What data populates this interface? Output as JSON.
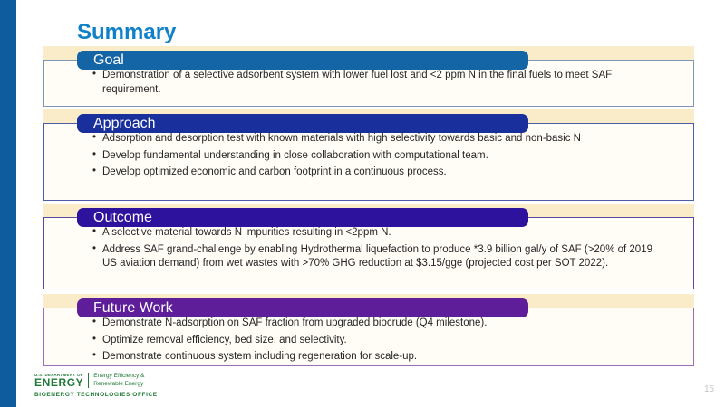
{
  "slide": {
    "title": "Summary",
    "title_color": "#1080c8",
    "accent_color": "#0e5c9e",
    "strip_color": "#faecc9",
    "page_number": "15"
  },
  "sections": [
    {
      "label": "Goal",
      "header_color": "#1465a5",
      "border_color": "#7d97b5",
      "bullets": [
        "Demonstration of a selective adsorbent system with lower fuel lost and <2 ppm N in the final fuels to meet SAF requirement."
      ]
    },
    {
      "label": "Approach",
      "header_color": "#182f9c",
      "border_color": "#4b5ca8",
      "bullets": [
        "Adsorption and desorption test with known materials with high selectivity towards basic and non-basic N",
        "Develop fundamental understanding in close collaboration with computational team.",
        "Develop optimized economic and carbon footprint in a continuous process."
      ]
    },
    {
      "label": "Outcome",
      "header_color": "#2d129e",
      "border_color": "#564ba2",
      "bullets": [
        "A selective material towards N impurities resulting in <2ppm N.",
        "Address SAF grand-challenge by enabling Hydrothermal liquefaction to produce *3.9 billion gal/y of SAF (>20% of 2019 US aviation demand) from wet wastes with >70% GHG reduction at $3.15/gge (projected cost per SOT 2022)."
      ]
    },
    {
      "label": "Future Work",
      "header_color": "#5e1d99",
      "border_color": "#9a6fb8",
      "bullets": [
        "Demonstrate N-adsorption on SAF fraction from upgraded biocrude (Q4 milestone).",
        "Optimize removal efficiency, bed size, and selectivity.",
        "Demonstrate continuous system including regeneration for scale-up."
      ]
    }
  ],
  "footer": {
    "dept_small": "U.S. DEPARTMENT OF",
    "dept_large": "ENERGY",
    "office_line1": "Energy Efficiency &",
    "office_line2": "Renewable Energy",
    "program": "BIOENERGY TECHNOLOGIES OFFICE",
    "logo_color": "#1f7a36"
  }
}
